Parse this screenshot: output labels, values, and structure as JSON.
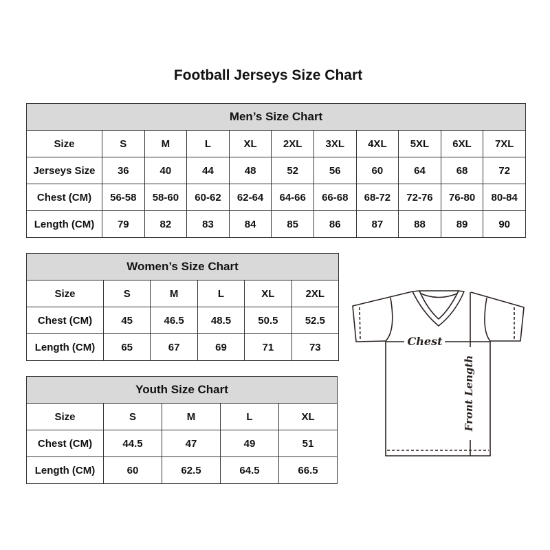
{
  "title": "Football Jerseys Size Chart",
  "men": {
    "heading": "Men’s Size Chart",
    "rows": [
      [
        "Size",
        "S",
        "M",
        "L",
        "XL",
        "2XL",
        "3XL",
        "4XL",
        "5XL",
        "6XL",
        "7XL"
      ],
      [
        "Jerseys Size",
        "36",
        "40",
        "44",
        "48",
        "52",
        "56",
        "60",
        "64",
        "68",
        "72"
      ],
      [
        "Chest (CM)",
        "56-58",
        "58-60",
        "60-62",
        "62-64",
        "64-66",
        "66-68",
        "68-72",
        "72-76",
        "76-80",
        "80-84"
      ],
      [
        "Length (CM)",
        "79",
        "82",
        "83",
        "84",
        "85",
        "86",
        "87",
        "88",
        "89",
        "90"
      ]
    ]
  },
  "women": {
    "heading": "Women’s Size Chart",
    "rows": [
      [
        "Size",
        "S",
        "M",
        "L",
        "XL",
        "2XL"
      ],
      [
        "Chest (CM)",
        "45",
        "46.5",
        "48.5",
        "50.5",
        "52.5"
      ],
      [
        "Length (CM)",
        "65",
        "67",
        "69",
        "71",
        "73"
      ]
    ]
  },
  "youth": {
    "heading": "Youth Size Chart",
    "rows": [
      [
        "Size",
        "S",
        "M",
        "L",
        "XL"
      ],
      [
        "Chest (CM)",
        "44.5",
        "47",
        "49",
        "51"
      ],
      [
        "Length (CM)",
        "60",
        "62.5",
        "64.5",
        "66.5"
      ]
    ]
  },
  "diagram": {
    "chest_label": "Chest",
    "length_label": "Front Length"
  }
}
